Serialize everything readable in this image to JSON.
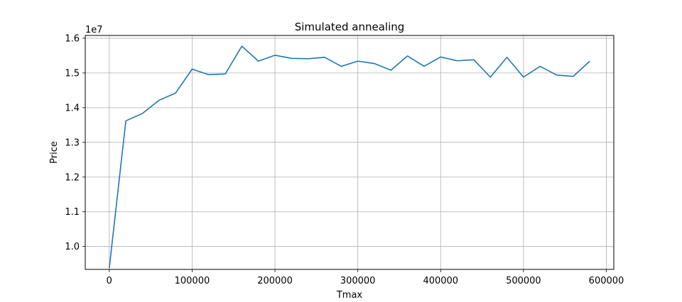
{
  "chart_data": {
    "type": "line",
    "title": "Simulated annealing",
    "xlabel": "Tmax",
    "ylabel": "Price",
    "y_offset_label": "1e7",
    "y_scale": 10000000,
    "xlim": [
      -29000,
      609000
    ],
    "ylim": [
      9.34,
      16.08
    ],
    "x_ticks": [
      0,
      100000,
      200000,
      300000,
      400000,
      500000,
      600000
    ],
    "x_tick_labels": [
      "0",
      "100000",
      "200000",
      "300000",
      "400000",
      "500000",
      "600000"
    ],
    "y_ticks": [
      10.0,
      11.0,
      12.0,
      13.0,
      14.0,
      15.0,
      16.0
    ],
    "y_tick_labels": [
      "1.0",
      "1.1",
      "1.2",
      "1.3",
      "1.4",
      "1.5",
      "1.6"
    ],
    "grid": true,
    "line_color": "#1f77b4",
    "series": [
      {
        "x": [
          0,
          20000,
          40000,
          60000,
          80000,
          100000,
          120000,
          140000,
          160000,
          180000,
          200000,
          220000,
          240000,
          260000,
          280000,
          300000,
          320000,
          340000,
          360000,
          380000,
          400000,
          420000,
          440000,
          460000,
          480000,
          500000,
          520000,
          540000,
          560000,
          580000
        ],
        "values": [
          9.38,
          13.62,
          13.83,
          14.21,
          14.42,
          15.11,
          14.95,
          14.97,
          15.77,
          15.34,
          15.51,
          15.42,
          15.41,
          15.45,
          15.19,
          15.34,
          15.27,
          15.08,
          15.49,
          15.19,
          15.46,
          15.35,
          15.38,
          14.88,
          15.45,
          14.88,
          15.19,
          14.94,
          14.9,
          15.34
        ]
      }
    ]
  }
}
